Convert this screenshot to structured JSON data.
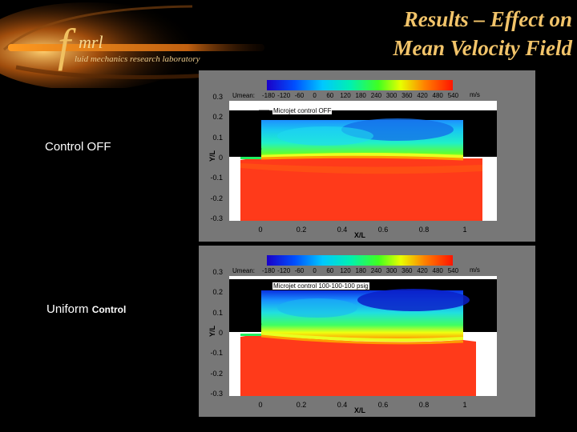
{
  "logo": {
    "f": "f",
    "mrl": "mrl",
    "subtitle": "luid mechanics research laboratory"
  },
  "title": {
    "line1": "Results –  Effect on",
    "line2": "Mean Velocity Field"
  },
  "labels": {
    "control_off": "Control OFF",
    "uniform": "Uniform",
    "uniform_small": "Control"
  },
  "colorbar": {
    "label": "Umean:",
    "unit": "m/s",
    "ticks": [
      "-180",
      "-120",
      "-60",
      "0",
      "60",
      "120",
      "180",
      "240",
      "300",
      "360",
      "420",
      "480",
      "540"
    ]
  },
  "axes": {
    "xlabel": "X/L",
    "ylabel": "Y/L",
    "xticks": [
      "0",
      "0.2",
      "0.4",
      "0.6",
      "0.8",
      "1"
    ],
    "yticks": [
      "0.3",
      "0.2",
      "0.1",
      "0",
      "-0.1",
      "-0.2",
      "-0.3"
    ]
  },
  "panels": [
    {
      "annotation": "Microjet control OFF"
    },
    {
      "annotation": "Microjet control 100-100-100 psig"
    }
  ],
  "colors": {
    "title": "#f2c46a",
    "panel_bg": "#777777"
  }
}
